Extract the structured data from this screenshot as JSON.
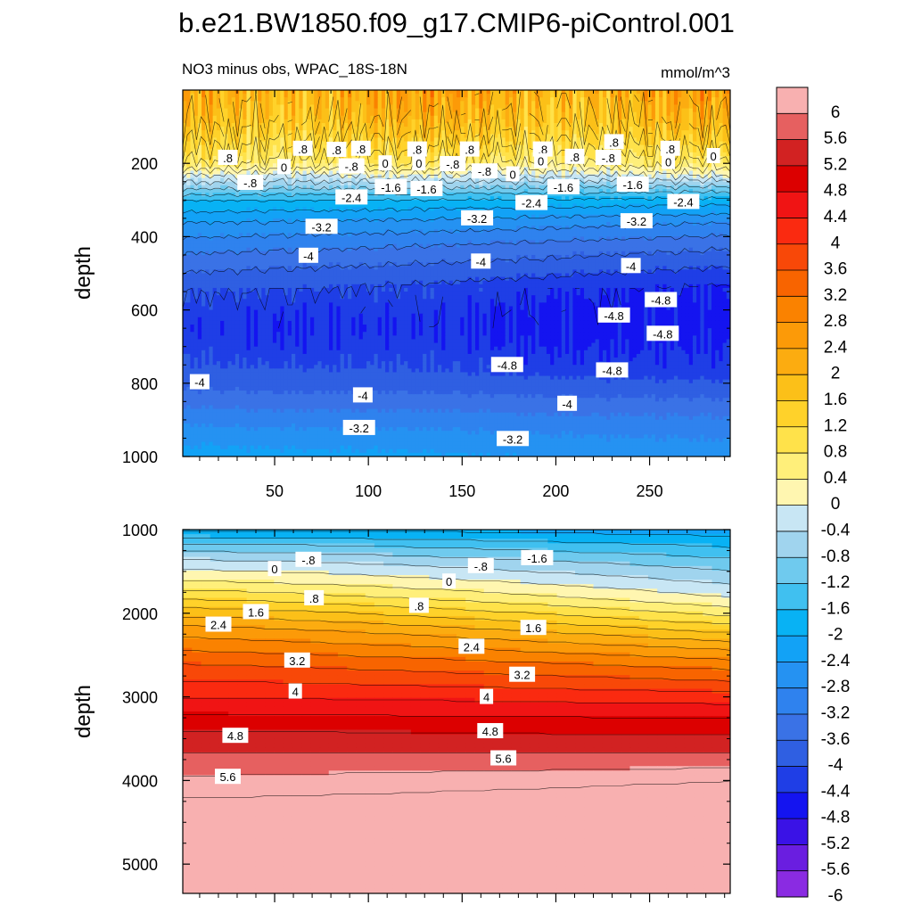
{
  "figure_title": "b.e21.BW1850.f09_g17.CMIP6-piControl.001",
  "colors": {
    "levels": [
      -6,
      -5.6,
      -5.2,
      -4.8,
      -4.4,
      -4,
      -3.6,
      -3.2,
      -2.8,
      -2.4,
      -2,
      -1.6,
      -1.2,
      -0.8,
      -0.4,
      0,
      0.4,
      0.8,
      1.2,
      1.6,
      2,
      2.4,
      2.8,
      3.2,
      3.6,
      4,
      4.4,
      4.8,
      5.2,
      5.6,
      6
    ],
    "fills": [
      "#8a2be2",
      "#6a1ee0",
      "#3a12e6",
      "#1414f0",
      "#1f3ee6",
      "#2f5fe2",
      "#3a72e6",
      "#2f82ee",
      "#2592f2",
      "#12a2f6",
      "#08b2f4",
      "#40c0f0",
      "#6fcaee",
      "#a0d4ee",
      "#c8e6f4",
      "#fff6b0",
      "#ffef7a",
      "#ffe24a",
      "#ffd22a",
      "#fcc018",
      "#fcac10",
      "#fc9a08",
      "#fa8200",
      "#f86400",
      "#f84808",
      "#fa2a10",
      "#f01414",
      "#dc0000",
      "#d22222",
      "#e66060",
      "#f8b0b0"
    ]
  },
  "colorbar": {
    "labels": [
      "6",
      "5.6",
      "5.2",
      "4.8",
      "4.4",
      "4",
      "3.6",
      "3.2",
      "2.8",
      "2.4",
      "2",
      "1.6",
      "1.2",
      "0.8",
      "0.4",
      "0",
      "-0.4",
      "-0.8",
      "-1.2",
      "-1.6",
      "-2",
      "-2.4",
      "-2.8",
      "-3.2",
      "-3.6",
      "-4",
      "-4.4",
      "-4.8",
      "-5.2",
      "-5.6",
      "-6"
    ]
  },
  "chart_data": [
    {
      "type": "heatmap",
      "title": "NO3 minus obs, WPAC_18S-18N",
      "units": "mmol/m^3",
      "ylabel": "depth",
      "xlabel": "",
      "xlim": [
        1,
        293
      ],
      "ylim": [
        1000,
        0
      ],
      "xticks": [
        50,
        100,
        150,
        200,
        250
      ],
      "xtick_labels": [
        "50",
        "100",
        "150",
        "200",
        "250"
      ],
      "yticks": [
        200,
        400,
        600,
        800,
        1000
      ],
      "ytick_labels": [
        "200",
        "400",
        "600",
        "800",
        "1000"
      ],
      "profile_depths": [
        0,
        80,
        150,
        200,
        230,
        260,
        300,
        360,
        420,
        480,
        540,
        600,
        650,
        700,
        760,
        820,
        880,
        940,
        1000
      ],
      "profile_values_left": [
        1.8,
        1.4,
        0.8,
        0.4,
        -0.4,
        -1.0,
        -2.0,
        -2.8,
        -3.4,
        -3.9,
        -4.3,
        -4.6,
        -4.7,
        -4.6,
        -4.3,
        -4.0,
        -3.5,
        -3.0,
        -2.6
      ],
      "profile_values_right": [
        1.8,
        1.4,
        0.8,
        0.2,
        -0.4,
        -1.2,
        -2.2,
        -3.2,
        -3.9,
        -4.4,
        -4.9,
        -5.0,
        -5.0,
        -4.9,
        -4.7,
        -4.2,
        -3.7,
        -3.3,
        -3.0
      ],
      "contour_labels": [
        {
          "x": 25,
          "y": 185,
          "text": ".8"
        },
        {
          "x": 65,
          "y": 160,
          "text": ".8"
        },
        {
          "x": 83,
          "y": 163,
          "text": ".8"
        },
        {
          "x": 96,
          "y": 160,
          "text": ".8"
        },
        {
          "x": 126,
          "y": 162,
          "text": ".8"
        },
        {
          "x": 154,
          "y": 162,
          "text": ".8"
        },
        {
          "x": 193,
          "y": 162,
          "text": ".8"
        },
        {
          "x": 210,
          "y": 182,
          "text": ".8"
        },
        {
          "x": 231,
          "y": 142,
          "text": ".8"
        },
        {
          "x": 261,
          "y": 160,
          "text": ".8"
        },
        {
          "x": 55,
          "y": 210,
          "text": "0"
        },
        {
          "x": 109,
          "y": 200,
          "text": "0"
        },
        {
          "x": 127,
          "y": 200,
          "text": "0"
        },
        {
          "x": 177,
          "y": 230,
          "text": "0"
        },
        {
          "x": 192,
          "y": 194,
          "text": "0"
        },
        {
          "x": 260,
          "y": 196,
          "text": "0"
        },
        {
          "x": 284,
          "y": 180,
          "text": "0"
        },
        {
          "x": 37,
          "y": 253,
          "text": "-.8"
        },
        {
          "x": 91,
          "y": 208,
          "text": "-.8"
        },
        {
          "x": 145,
          "y": 202,
          "text": "-.8"
        },
        {
          "x": 162,
          "y": 222,
          "text": "-.8"
        },
        {
          "x": 228,
          "y": 185,
          "text": "-.8"
        },
        {
          "x": 91,
          "y": 293,
          "text": "-2.4"
        },
        {
          "x": 112,
          "y": 265,
          "text": "-1.6"
        },
        {
          "x": 131,
          "y": 270,
          "text": "-1.6"
        },
        {
          "x": 187,
          "y": 308,
          "text": "-2.4"
        },
        {
          "x": 204,
          "y": 265,
          "text": "-1.6"
        },
        {
          "x": 241,
          "y": 258,
          "text": "-1.6"
        },
        {
          "x": 268,
          "y": 305,
          "text": "-2.4"
        },
        {
          "x": 75,
          "y": 373,
          "text": "-3.2"
        },
        {
          "x": 158,
          "y": 350,
          "text": "-3.2"
        },
        {
          "x": 243,
          "y": 358,
          "text": "-3.2"
        },
        {
          "x": 68,
          "y": 452,
          "text": "-4"
        },
        {
          "x": 160,
          "y": 468,
          "text": "-4"
        },
        {
          "x": 240,
          "y": 480,
          "text": "-4"
        },
        {
          "x": 10,
          "y": 797,
          "text": "-4"
        },
        {
          "x": 97,
          "y": 833,
          "text": "-4"
        },
        {
          "x": 206,
          "y": 856,
          "text": "-4"
        },
        {
          "x": 256,
          "y": 573,
          "text": "-4.8"
        },
        {
          "x": 231,
          "y": 615,
          "text": "-4.8"
        },
        {
          "x": 257,
          "y": 665,
          "text": "-4.8"
        },
        {
          "x": 174,
          "y": 750,
          "text": "-4.8"
        },
        {
          "x": 230,
          "y": 765,
          "text": "-4.8"
        },
        {
          "x": 95,
          "y": 922,
          "text": "-3.2"
        },
        {
          "x": 177,
          "y": 952,
          "text": "-3.2"
        }
      ]
    },
    {
      "type": "heatmap",
      "title": "",
      "units": "mmol/m^3",
      "ylabel": "depth",
      "xlabel": "",
      "xlim": [
        1,
        293
      ],
      "ylim": [
        5350,
        1000
      ],
      "yticks": [
        1000,
        2000,
        3000,
        4000,
        5000
      ],
      "ytick_labels": [
        "1000",
        "2000",
        "3000",
        "4000",
        "5000"
      ],
      "profile_depths": [
        1000,
        1200,
        1400,
        1600,
        1800,
        2000,
        2200,
        2400,
        2600,
        2800,
        3000,
        3200,
        3400,
        3600,
        3800,
        4000,
        4200,
        4400,
        5350
      ],
      "profile_values_left": [
        -2.4,
        -1.4,
        -0.6,
        0.0,
        0.7,
        1.5,
        2.2,
        2.7,
        3.2,
        3.6,
        4.0,
        4.4,
        4.8,
        5.1,
        5.4,
        5.7,
        6.0,
        6.2,
        6.5
      ],
      "profile_values_right": [
        -2.6,
        -2.0,
        -1.4,
        -0.9,
        -0.4,
        0.3,
        1.1,
        1.9,
        2.6,
        3.2,
        3.8,
        4.3,
        4.7,
        5.1,
        5.5,
        6.0,
        6.3,
        6.4,
        6.5
      ],
      "contour_labels": [
        {
          "x": 68,
          "y": 1360,
          "text": "-.8"
        },
        {
          "x": 160,
          "y": 1435,
          "text": "-.8"
        },
        {
          "x": 190,
          "y": 1340,
          "text": "-1.6"
        },
        {
          "x": 50,
          "y": 1470,
          "text": "0"
        },
        {
          "x": 143,
          "y": 1620,
          "text": "0"
        },
        {
          "x": 71,
          "y": 1820,
          "text": ".8"
        },
        {
          "x": 127,
          "y": 1910,
          "text": ".8"
        },
        {
          "x": 40,
          "y": 1985,
          "text": "1.6"
        },
        {
          "x": 188,
          "y": 2175,
          "text": "1.6"
        },
        {
          "x": 20,
          "y": 2135,
          "text": "2.4"
        },
        {
          "x": 155,
          "y": 2400,
          "text": "2.4"
        },
        {
          "x": 62,
          "y": 2565,
          "text": "3.2"
        },
        {
          "x": 182,
          "y": 2735,
          "text": "3.2"
        },
        {
          "x": 61,
          "y": 2935,
          "text": "4"
        },
        {
          "x": 163,
          "y": 3000,
          "text": "4"
        },
        {
          "x": 29,
          "y": 3465,
          "text": "4.8"
        },
        {
          "x": 165,
          "y": 3410,
          "text": "4.8"
        },
        {
          "x": 25,
          "y": 3955,
          "text": "5.6"
        },
        {
          "x": 172,
          "y": 3735,
          "text": "5.6"
        }
      ]
    }
  ]
}
